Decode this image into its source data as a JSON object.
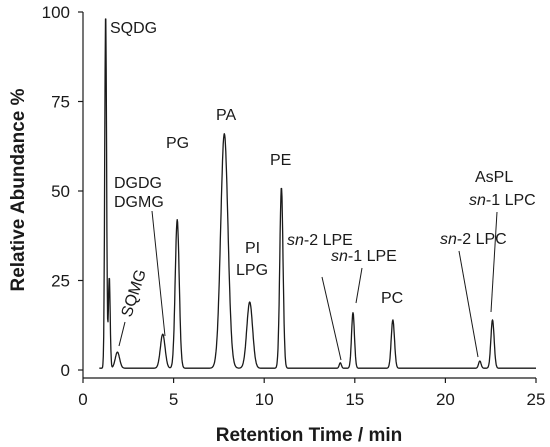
{
  "chart_data": {
    "type": "line",
    "xlabel": "Retention Time / min",
    "ylabel": "Relative Abundance %",
    "xlim": [
      0,
      25
    ],
    "ylim": [
      0,
      100
    ],
    "xticks": [
      0,
      5,
      10,
      15,
      20,
      25
    ],
    "yticks": [
      0,
      25,
      50,
      75,
      100
    ],
    "grid": false,
    "legend": "none",
    "line_color": "#1a1a1a",
    "baseline": 0.5,
    "peaks": [
      {
        "x": 1.25,
        "y": 100,
        "label": "SQDG"
      },
      {
        "x": 1.45,
        "y": 26
      },
      {
        "x": 1.9,
        "y": 5,
        "label": "SQMG"
      },
      {
        "x": 4.4,
        "y": 10,
        "label": "DGDG DGMG"
      },
      {
        "x": 5.2,
        "y": 42,
        "label": "PG"
      },
      {
        "x": 7.8,
        "y": 66,
        "label": "PA"
      },
      {
        "x": 9.2,
        "y": 19,
        "label": "PI LPG"
      },
      {
        "x": 10.95,
        "y": 51,
        "label": "PE"
      },
      {
        "x": 14.2,
        "y": 2,
        "label": "sn-2 LPE"
      },
      {
        "x": 14.9,
        "y": 16,
        "label": "sn-1 LPE"
      },
      {
        "x": 17.1,
        "y": 14,
        "label": "PC"
      },
      {
        "x": 21.9,
        "y": 2.5,
        "label": "sn-2 LPC"
      },
      {
        "x": 22.6,
        "y": 14,
        "label": "AsPL sn-1 LPC"
      }
    ],
    "annotations": [
      {
        "id": "sqdg",
        "parts": [
          {
            "text": "SQDG"
          }
        ]
      },
      {
        "id": "sqmg",
        "parts": [
          {
            "text": "SQMG"
          }
        ]
      },
      {
        "id": "dgdg",
        "parts": [
          {
            "text": "DGDG"
          }
        ]
      },
      {
        "id": "dgmg",
        "parts": [
          {
            "text": "DGMG"
          }
        ]
      },
      {
        "id": "pg",
        "parts": [
          {
            "text": "PG"
          }
        ]
      },
      {
        "id": "pa",
        "parts": [
          {
            "text": "PA"
          }
        ]
      },
      {
        "id": "pe",
        "parts": [
          {
            "text": "PE"
          }
        ]
      },
      {
        "id": "pi",
        "parts": [
          {
            "text": "PI"
          }
        ]
      },
      {
        "id": "lpg",
        "parts": [
          {
            "text": "LPG"
          }
        ]
      },
      {
        "id": "sn2lpe",
        "parts": [
          {
            "text": "sn",
            "italic": true
          },
          {
            "text": "-2 LPE"
          }
        ]
      },
      {
        "id": "sn1lpe",
        "parts": [
          {
            "text": "sn",
            "italic": true
          },
          {
            "text": "-1 LPE"
          }
        ]
      },
      {
        "id": "pc",
        "parts": [
          {
            "text": "PC"
          }
        ]
      },
      {
        "id": "sn2lpc",
        "parts": [
          {
            "text": "sn",
            "italic": true
          },
          {
            "text": "-2 LPC"
          }
        ]
      },
      {
        "id": "aspl",
        "parts": [
          {
            "text": "AsPL"
          }
        ]
      },
      {
        "id": "sn1lpc",
        "parts": [
          {
            "text": "sn",
            "italic": true
          },
          {
            "text": "-1 LPC"
          }
        ]
      }
    ]
  }
}
